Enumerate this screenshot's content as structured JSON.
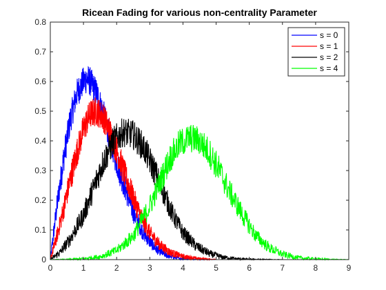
{
  "chart_data": {
    "type": "line",
    "title": "Ricean Fading for various non-centrality Parameter",
    "xlabel": "",
    "ylabel": "",
    "xlim": [
      0,
      9
    ],
    "ylim": [
      0,
      0.8
    ],
    "xticks": [
      0,
      1,
      2,
      3,
      4,
      5,
      6,
      7,
      8,
      9
    ],
    "yticks": [
      0,
      0.1,
      0.2,
      0.3,
      0.4,
      0.5,
      0.6,
      0.7,
      0.8
    ],
    "xtick_labels": [
      "0",
      "1",
      "2",
      "3",
      "4",
      "5",
      "6",
      "7",
      "8",
      "9"
    ],
    "ytick_labels": [
      "0",
      "0.1",
      "0.2",
      "0.3",
      "0.4",
      "0.5",
      "0.6",
      "0.7",
      "0.8"
    ],
    "grid": false,
    "legend_position": "top-right",
    "series": [
      {
        "name": "s = 0",
        "color": "#0000ff",
        "x": [
          0,
          0.2,
          0.4,
          0.6,
          0.8,
          1.0,
          1.1,
          1.2,
          1.4,
          1.6,
          1.8,
          2.0,
          2.2,
          2.5,
          2.8,
          3.0,
          3.2,
          3.5,
          3.8,
          4.0,
          4.5,
          5.0
        ],
        "y": [
          0,
          0.18,
          0.34,
          0.47,
          0.56,
          0.6,
          0.61,
          0.6,
          0.56,
          0.49,
          0.41,
          0.33,
          0.26,
          0.16,
          0.09,
          0.06,
          0.035,
          0.015,
          0.006,
          0.003,
          0.0005,
          0
        ]
      },
      {
        "name": "s = 1",
        "color": "#ff0000",
        "x": [
          0,
          0.2,
          0.4,
          0.6,
          0.8,
          1.0,
          1.2,
          1.4,
          1.6,
          1.8,
          2.0,
          2.2,
          2.4,
          2.6,
          2.8,
          3.0,
          3.3,
          3.6,
          4.0,
          4.5,
          5.0
        ],
        "y": [
          0,
          0.08,
          0.17,
          0.27,
          0.36,
          0.44,
          0.49,
          0.5,
          0.48,
          0.43,
          0.37,
          0.3,
          0.24,
          0.18,
          0.13,
          0.09,
          0.05,
          0.025,
          0.01,
          0.003,
          0
        ]
      },
      {
        "name": "s = 2",
        "color": "#000000",
        "x": [
          0,
          0.3,
          0.6,
          1.0,
          1.3,
          1.6,
          1.9,
          2.2,
          2.5,
          2.8,
          3.1,
          3.4,
          3.7,
          4.0,
          4.4,
          4.8,
          5.2,
          5.6,
          6.0,
          6.5,
          7.0
        ],
        "y": [
          0,
          0.025,
          0.07,
          0.15,
          0.24,
          0.33,
          0.4,
          0.43,
          0.42,
          0.38,
          0.31,
          0.23,
          0.15,
          0.09,
          0.045,
          0.02,
          0.008,
          0.003,
          0.001,
          0.0003,
          0
        ]
      },
      {
        "name": "s = 4",
        "color": "#00ff00",
        "x": [
          0,
          0.5,
          1.0,
          1.5,
          2.0,
          2.5,
          3.0,
          3.3,
          3.6,
          3.9,
          4.2,
          4.5,
          4.8,
          5.1,
          5.4,
          5.8,
          6.2,
          6.6,
          7.0,
          7.5,
          8.0,
          8.5,
          9.0
        ],
        "y": [
          0,
          0.0005,
          0.003,
          0.01,
          0.03,
          0.08,
          0.18,
          0.26,
          0.34,
          0.39,
          0.41,
          0.4,
          0.36,
          0.3,
          0.23,
          0.15,
          0.08,
          0.04,
          0.018,
          0.006,
          0.002,
          0.0005,
          0
        ]
      }
    ]
  }
}
